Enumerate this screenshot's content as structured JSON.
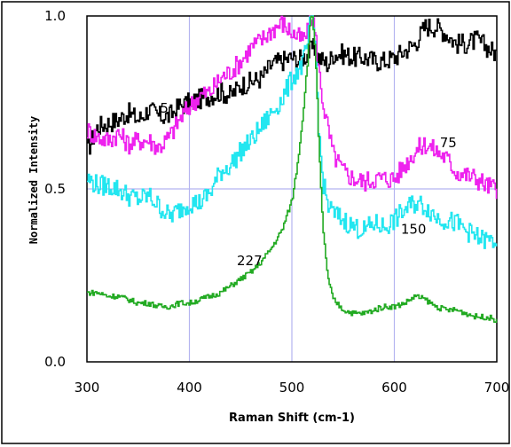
{
  "chart_data": {
    "type": "line",
    "title": "",
    "xlabel": "Raman Shift (cm-1)",
    "ylabel": "Normalized Intensity",
    "xlim": [
      300,
      700
    ],
    "ylim": [
      0,
      1
    ],
    "x_ticks": [
      "300",
      "400",
      "500",
      "600",
      "700"
    ],
    "y_ticks": [
      "0.0",
      "0.5",
      "1.0"
    ],
    "grid": "major",
    "grid_color": "#b4b4f0",
    "x": [
      300,
      310,
      320,
      330,
      340,
      350,
      360,
      370,
      380,
      390,
      400,
      410,
      420,
      430,
      440,
      450,
      460,
      470,
      480,
      490,
      500,
      505,
      510,
      515,
      518,
      520,
      523,
      526,
      530,
      535,
      540,
      550,
      560,
      570,
      580,
      590,
      600,
      610,
      620,
      630,
      640,
      650,
      660,
      670,
      680,
      690,
      700
    ],
    "series": [
      {
        "label": "5",
        "color": "#000000",
        "values": [
          0.61,
          0.68,
          0.69,
          0.7,
          0.72,
          0.7,
          0.73,
          0.71,
          0.71,
          0.74,
          0.75,
          0.76,
          0.77,
          0.78,
          0.77,
          0.8,
          0.81,
          0.82,
          0.86,
          0.87,
          0.88,
          0.87,
          0.88,
          0.89,
          0.9,
          0.91,
          0.89,
          0.88,
          0.87,
          0.86,
          0.89,
          0.89,
          0.88,
          0.88,
          0.87,
          0.87,
          0.88,
          0.9,
          0.92,
          0.97,
          0.97,
          0.95,
          0.92,
          0.92,
          0.93,
          0.91,
          0.89
        ]
      },
      {
        "label": "75",
        "color": "#ee22ee",
        "values": [
          0.67,
          0.65,
          0.64,
          0.66,
          0.63,
          0.64,
          0.64,
          0.62,
          0.65,
          0.7,
          0.74,
          0.77,
          0.78,
          0.82,
          0.84,
          0.87,
          0.91,
          0.93,
          0.96,
          0.98,
          0.95,
          0.94,
          0.93,
          0.95,
          0.99,
          1.0,
          0.93,
          0.84,
          0.75,
          0.67,
          0.6,
          0.55,
          0.53,
          0.52,
          0.53,
          0.53,
          0.53,
          0.57,
          0.61,
          0.63,
          0.61,
          0.59,
          0.55,
          0.54,
          0.53,
          0.51,
          0.5
        ]
      },
      {
        "label": "150",
        "color": "#22e6f0",
        "values": [
          0.53,
          0.51,
          0.51,
          0.5,
          0.48,
          0.47,
          0.48,
          0.45,
          0.42,
          0.44,
          0.46,
          0.46,
          0.49,
          0.55,
          0.57,
          0.61,
          0.64,
          0.68,
          0.72,
          0.76,
          0.82,
          0.84,
          0.86,
          0.92,
          0.99,
          1.0,
          0.88,
          0.66,
          0.52,
          0.45,
          0.43,
          0.41,
          0.39,
          0.38,
          0.4,
          0.39,
          0.41,
          0.44,
          0.46,
          0.45,
          0.42,
          0.41,
          0.4,
          0.38,
          0.36,
          0.35,
          0.35
        ]
      },
      {
        "label": "227",
        "color": "#22aa22",
        "values": [
          0.2,
          0.2,
          0.19,
          0.19,
          0.18,
          0.17,
          0.17,
          0.16,
          0.16,
          0.17,
          0.17,
          0.18,
          0.19,
          0.2,
          0.22,
          0.24,
          0.26,
          0.29,
          0.33,
          0.38,
          0.47,
          0.57,
          0.7,
          0.87,
          1.0,
          1.0,
          0.87,
          0.62,
          0.38,
          0.24,
          0.18,
          0.15,
          0.14,
          0.14,
          0.15,
          0.16,
          0.16,
          0.17,
          0.19,
          0.18,
          0.16,
          0.15,
          0.15,
          0.14,
          0.13,
          0.13,
          0.12
        ]
      }
    ]
  }
}
